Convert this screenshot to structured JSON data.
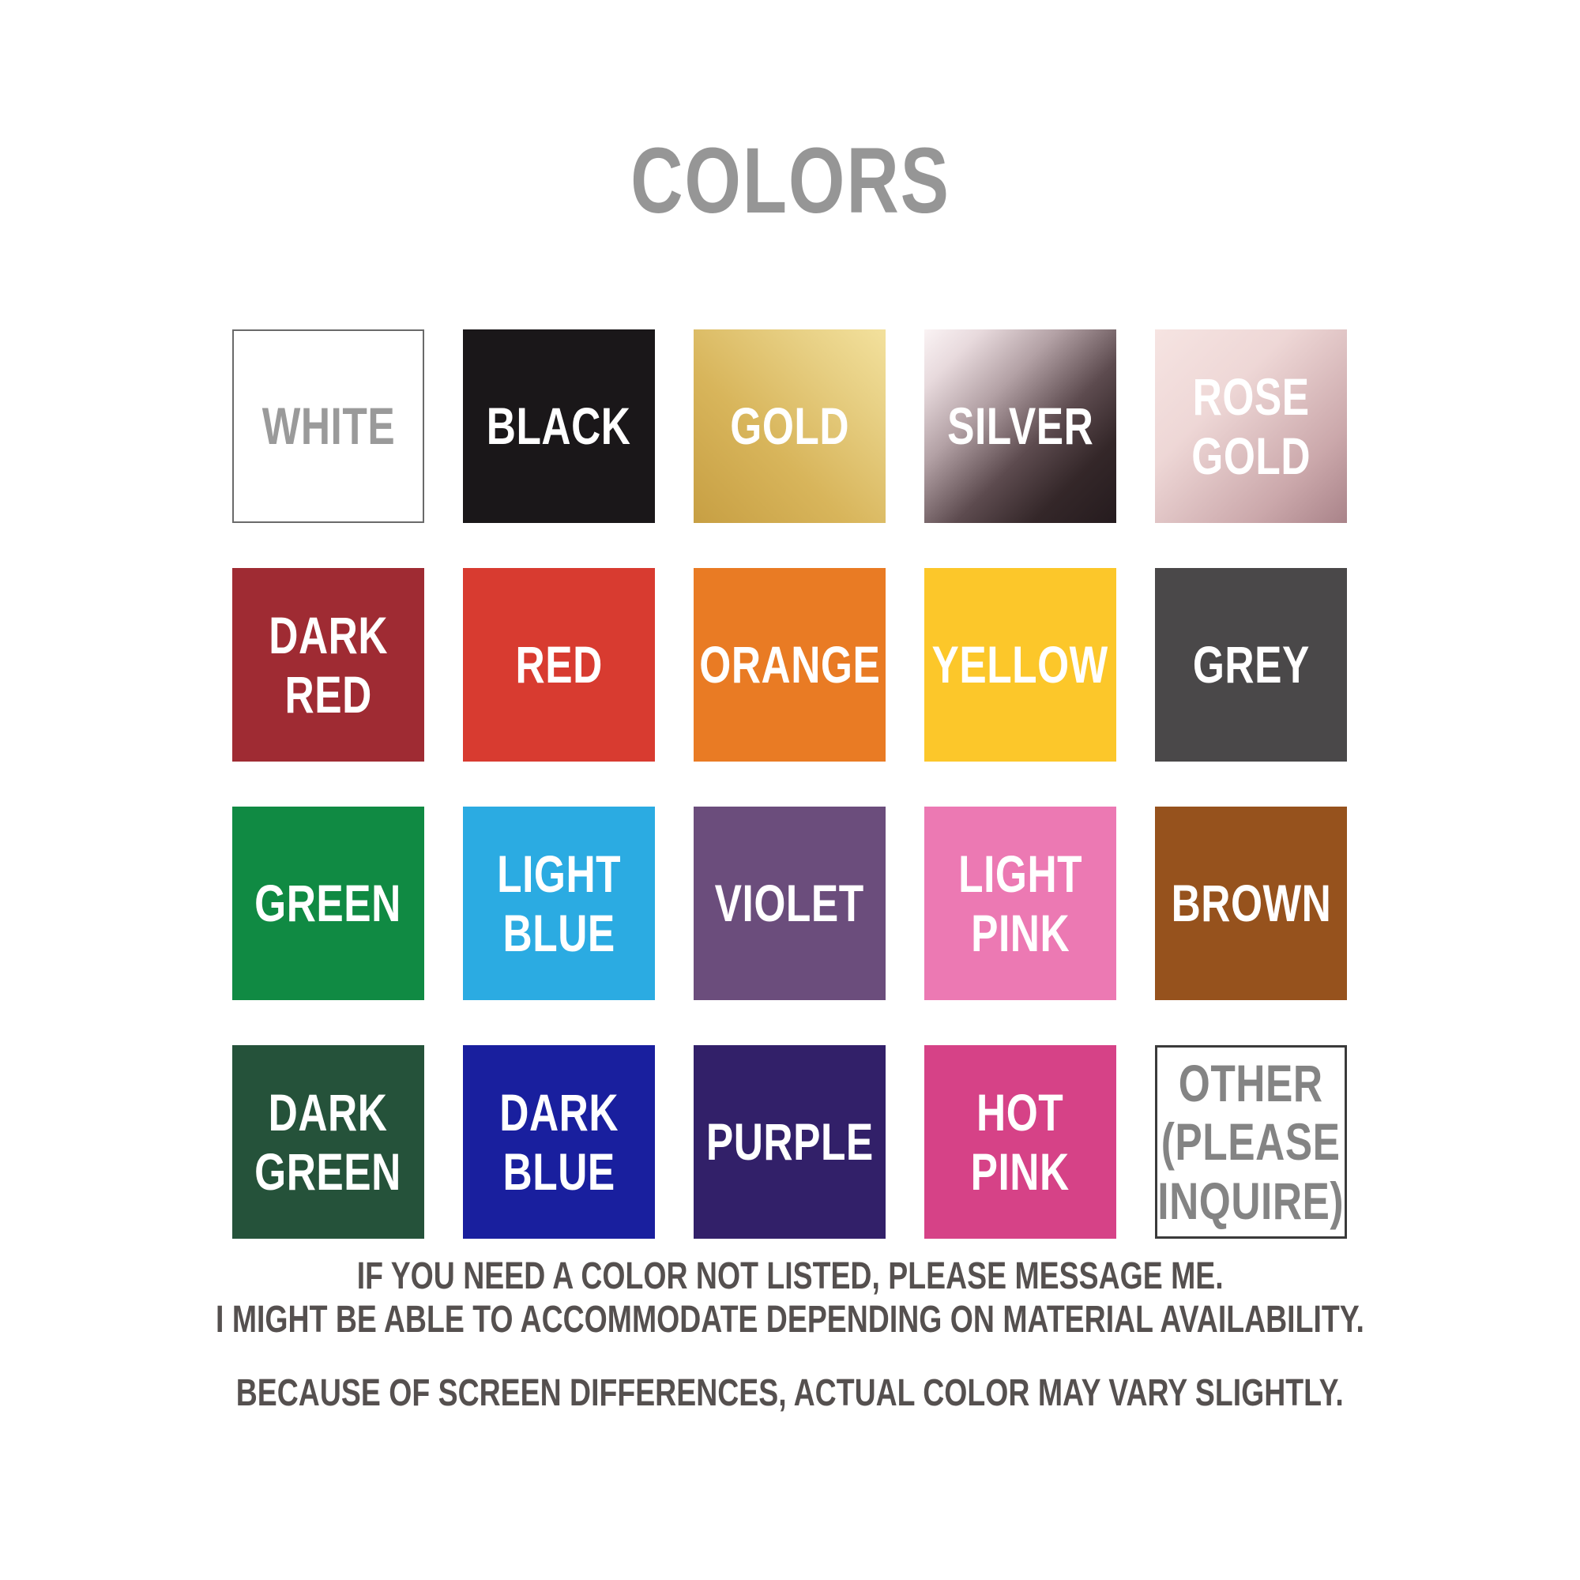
{
  "title": "COLORS",
  "colors": {
    "title_text": "#969696",
    "footer_text": "#55504f",
    "swatch_label_light": "#ffffff",
    "swatch_label_grey": "#9a9a9a"
  },
  "swatches": [
    {
      "id": "white",
      "label": "WHITE",
      "background": "#ffffff",
      "label_color": "#9a9a9a",
      "border": "2px solid #6a6a6a"
    },
    {
      "id": "black",
      "label": "BLACK",
      "background": "#1a1719",
      "label_color": "#ffffff"
    },
    {
      "id": "gold",
      "label": "GOLD",
      "background": "linear-gradient(225deg, #f3e19d 0%, #e7cf83 25%, #d8b55b 60%, #c79f43 100%)",
      "label_color": "#ffffff"
    },
    {
      "id": "silver",
      "label": "SILVER",
      "background": "linear-gradient(135deg, #faf3f4 0%, #e8dadd 15%, #b3a1a5 35%, #5d4b4f 58%, #342729 78%, #251b1e 100%)",
      "label_color": "#ffffff"
    },
    {
      "id": "rose-gold",
      "label": "ROSE\nGOLD",
      "background": "linear-gradient(135deg, #f6e4e2 0%, #eed7d6 35%, #cba8ab 75%, #a98389 100%)",
      "label_color": "#ffffff"
    },
    {
      "id": "dark-red",
      "label": "DARK\nRED",
      "background": "#9f2b33",
      "label_color": "#ffffff"
    },
    {
      "id": "red",
      "label": "RED",
      "background": "#d83b30",
      "label_color": "#ffffff"
    },
    {
      "id": "orange",
      "label": "ORANGE",
      "background": "#e97b24",
      "label_color": "#ffffff"
    },
    {
      "id": "yellow",
      "label": "YELLOW",
      "background": "#fcc72a",
      "label_color": "#ffffff"
    },
    {
      "id": "grey",
      "label": "GREY",
      "background": "#4a4849",
      "label_color": "#ffffff"
    },
    {
      "id": "green",
      "label": "GREEN",
      "background": "#108a43",
      "label_color": "#ffffff"
    },
    {
      "id": "light-blue",
      "label": "LIGHT\nBLUE",
      "background": "#2babe2",
      "label_color": "#ffffff"
    },
    {
      "id": "violet",
      "label": "VIOLET",
      "background": "#6b4d7c",
      "label_color": "#ffffff"
    },
    {
      "id": "light-pink",
      "label": "LIGHT\nPINK",
      "background": "#ec79b3",
      "label_color": "#ffffff"
    },
    {
      "id": "brown",
      "label": "BROWN",
      "background": "#96521d",
      "label_color": "#ffffff"
    },
    {
      "id": "dark-green",
      "label": "DARK\nGREEN",
      "background": "#25523a",
      "label_color": "#ffffff"
    },
    {
      "id": "dark-blue",
      "label": "DARK\nBLUE",
      "background": "#191f9e",
      "label_color": "#ffffff"
    },
    {
      "id": "purple",
      "label": "PURPLE",
      "background": "#322069",
      "label_color": "#ffffff"
    },
    {
      "id": "hot-pink",
      "label": "HOT\nPINK",
      "background": "#d64287",
      "label_color": "#ffffff"
    },
    {
      "id": "other",
      "label": "OTHER\n(PLEASE\nINQUIRE)",
      "background": "#ffffff",
      "label_color": "#848484",
      "border": "3px solid #3a3a3a"
    }
  ],
  "footer": {
    "line1": "IF YOU NEED A COLOR NOT LISTED, PLEASE MESSAGE ME.",
    "line2": "I MIGHT BE ABLE TO ACCOMMODATE DEPENDING ON MATERIAL AVAILABILITY.",
    "line3": "BECAUSE OF SCREEN DIFFERENCES, ACTUAL COLOR MAY VARY SLIGHTLY."
  },
  "chart_data": {
    "type": "table",
    "title": "COLORS",
    "layout": {
      "rows": 4,
      "cols": 5,
      "legend_position": "none",
      "grid": false
    },
    "categories": [
      "WHITE",
      "BLACK",
      "GOLD",
      "SILVER",
      "ROSE GOLD",
      "DARK RED",
      "RED",
      "ORANGE",
      "YELLOW",
      "GREY",
      "GREEN",
      "LIGHT BLUE",
      "VIOLET",
      "LIGHT PINK",
      "BROWN",
      "DARK GREEN",
      "DARK BLUE",
      "PURPLE",
      "HOT PINK",
      "OTHER (PLEASE INQUIRE)"
    ],
    "values": [
      "#ffffff",
      "#1a1719",
      "metallic gold gradient #f3e19d-#c79f43",
      "metallic silver gradient #faf3f4-#251b1e",
      "metallic rose gold gradient #f6e4e2-#a98389",
      "#9f2b33",
      "#d83b30",
      "#e97b24",
      "#fcc72a",
      "#4a4849",
      "#108a43",
      "#2babe2",
      "#6b4d7c",
      "#ec79b3",
      "#96521d",
      "#25523a",
      "#191f9e",
      "#322069",
      "#d64287",
      "#ffffff (other / please inquire)"
    ],
    "annotations": [
      "IF YOU NEED A COLOR NOT LISTED, PLEASE MESSAGE ME.",
      "I MIGHT BE ABLE TO ACCOMMODATE DEPENDING ON MATERIAL AVAILABILITY.",
      "BECAUSE OF SCREEN DIFFERENCES, ACTUAL COLOR MAY VARY SLIGHTLY."
    ]
  }
}
